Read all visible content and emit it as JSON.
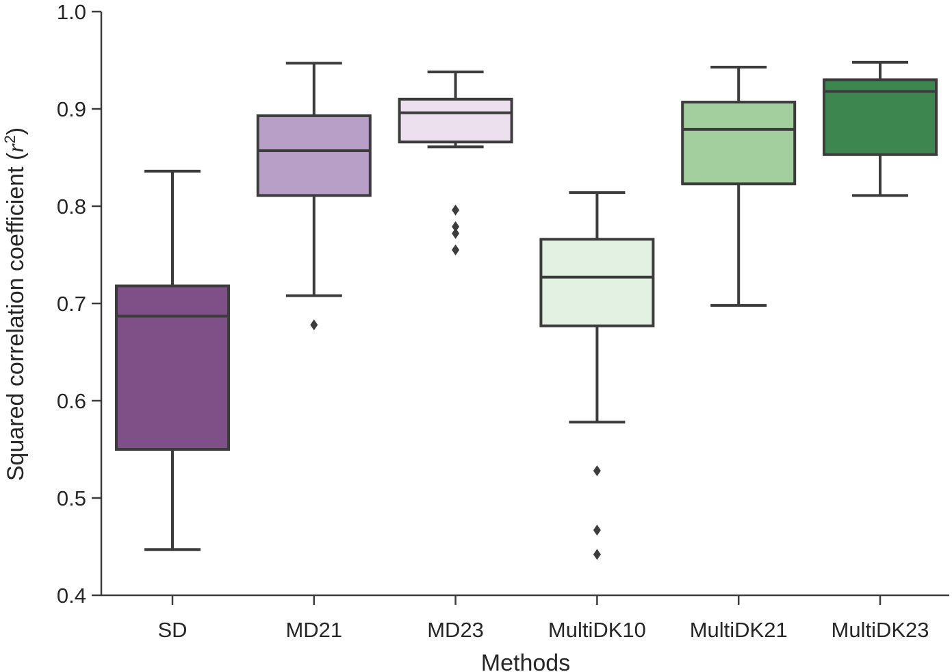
{
  "chart_data": {
    "type": "box",
    "title": "",
    "xlabel": "Methods",
    "ylabel": {
      "text": "Squared correlation coefficient",
      "symbol": "r",
      "exponent": "2"
    },
    "ylim": [
      0.4,
      1.0
    ],
    "yticks": [
      0.4,
      0.5,
      0.6,
      0.7,
      0.8,
      0.9,
      1.0
    ],
    "ytick_labels": [
      "0.4",
      "0.5",
      "0.6",
      "0.7",
      "0.8",
      "0.9",
      "1.0"
    ],
    "grid": false,
    "categories": [
      "SD",
      "MD21",
      "MD23",
      "MultiDK10",
      "MultiDK21",
      "MultiDK23"
    ],
    "boxes": [
      {
        "label": "SD",
        "whisker_low": 0.447,
        "q1": 0.55,
        "median": 0.687,
        "q3": 0.718,
        "whisker_high": 0.836,
        "fliers": [],
        "color": "#7f4f88"
      },
      {
        "label": "MD21",
        "whisker_low": 0.708,
        "q1": 0.811,
        "median": 0.857,
        "q3": 0.893,
        "whisker_high": 0.947,
        "fliers": [
          0.678
        ],
        "color": "#b89fc8"
      },
      {
        "label": "MD23",
        "whisker_low": 0.861,
        "q1": 0.866,
        "median": 0.896,
        "q3": 0.91,
        "whisker_high": 0.938,
        "fliers": [
          0.755,
          0.772,
          0.779,
          0.796
        ],
        "color": "#ece0ee"
      },
      {
        "label": "MultiDK10",
        "whisker_low": 0.578,
        "q1": 0.677,
        "median": 0.727,
        "q3": 0.766,
        "whisker_high": 0.814,
        "fliers": [
          0.442,
          0.467,
          0.528
        ],
        "color": "#e3f1e2"
      },
      {
        "label": "MultiDK21",
        "whisker_low": 0.698,
        "q1": 0.823,
        "median": 0.879,
        "q3": 0.907,
        "whisker_high": 0.943,
        "fliers": [],
        "color": "#a2cf9d"
      },
      {
        "label": "MultiDK23",
        "whisker_low": 0.811,
        "q1": 0.853,
        "median": 0.918,
        "q3": 0.93,
        "whisker_high": 0.948,
        "fliers": [],
        "color": "#3e8650"
      }
    ],
    "edge_color": "#3c3c3c"
  }
}
